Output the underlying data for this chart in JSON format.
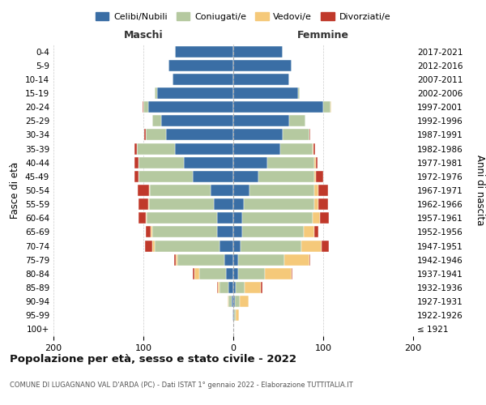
{
  "age_groups": [
    "100+",
    "95-99",
    "90-94",
    "85-89",
    "80-84",
    "75-79",
    "70-74",
    "65-69",
    "60-64",
    "55-59",
    "50-54",
    "45-49",
    "40-44",
    "35-39",
    "30-34",
    "25-29",
    "20-24",
    "15-19",
    "10-14",
    "5-9",
    "0-4"
  ],
  "birth_years": [
    "≤ 1921",
    "1922-1926",
    "1927-1931",
    "1932-1936",
    "1937-1941",
    "1942-1946",
    "1947-1951",
    "1952-1956",
    "1957-1961",
    "1962-1966",
    "1967-1971",
    "1972-1976",
    "1977-1981",
    "1982-1986",
    "1987-1991",
    "1992-1996",
    "1997-2001",
    "2002-2006",
    "2007-2011",
    "2012-2016",
    "2017-2021"
  ],
  "males": {
    "celibi": [
      0,
      1,
      2,
      5,
      8,
      10,
      15,
      18,
      18,
      22,
      25,
      45,
      55,
      65,
      75,
      80,
      95,
      85,
      68,
      72,
      65
    ],
    "coniugati": [
      0,
      0,
      3,
      10,
      30,
      52,
      72,
      72,
      78,
      72,
      68,
      60,
      50,
      42,
      22,
      10,
      5,
      2,
      0,
      0,
      0
    ],
    "vedovi": [
      0,
      0,
      1,
      2,
      5,
      2,
      3,
      2,
      1,
      1,
      1,
      0,
      0,
      0,
      0,
      0,
      0,
      0,
      0,
      0,
      0
    ],
    "divorziati": [
      0,
      0,
      0,
      1,
      2,
      2,
      8,
      5,
      8,
      10,
      12,
      5,
      5,
      3,
      2,
      0,
      1,
      0,
      0,
      0,
      0
    ]
  },
  "females": {
    "nubili": [
      0,
      1,
      2,
      3,
      5,
      5,
      8,
      10,
      10,
      12,
      18,
      28,
      38,
      52,
      55,
      62,
      100,
      72,
      62,
      65,
      55
    ],
    "coniugate": [
      0,
      2,
      5,
      10,
      30,
      52,
      68,
      68,
      78,
      78,
      72,
      62,
      52,
      36,
      30,
      18,
      8,
      2,
      0,
      0,
      0
    ],
    "vedove": [
      0,
      3,
      10,
      18,
      30,
      28,
      22,
      12,
      8,
      5,
      5,
      2,
      2,
      1,
      0,
      0,
      1,
      0,
      0,
      0,
      0
    ],
    "divorziate": [
      0,
      0,
      0,
      1,
      1,
      1,
      8,
      5,
      10,
      10,
      10,
      8,
      2,
      2,
      1,
      0,
      0,
      0,
      0,
      0,
      0
    ]
  },
  "colors": {
    "celibi": "#3a6ea5",
    "coniugati": "#b5c9a0",
    "vedovi": "#f5c97a",
    "divorziati": "#c0392b"
  },
  "xlim": 200,
  "title": "Popolazione per età, sesso e stato civile - 2022",
  "subtitle": "COMUNE DI LUGAGNANO VAL D'ARDA (PC) - Dati ISTAT 1° gennaio 2022 - Elaborazione TUTTITALIA.IT",
  "ylabel": "Fasce di età",
  "ylabel_right": "Anni di nascita",
  "maschi_label": "Maschi",
  "femmine_label": "Femmine",
  "legend_labels": [
    "Celibi/Nubili",
    "Coniugati/e",
    "Vedovi/e",
    "Divorziati/e"
  ],
  "bg_color": "#ffffff",
  "grid_color": "#cccccc"
}
